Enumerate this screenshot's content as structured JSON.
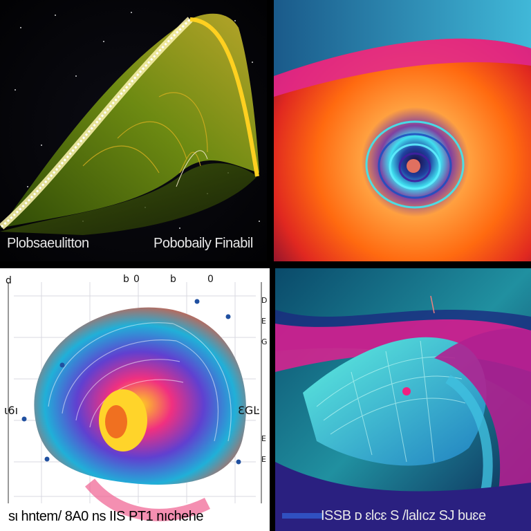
{
  "panels": [
    {
      "id": "top-left",
      "caption_left": "Plobsaeulitton",
      "caption_right": "Pobobaily Finabil"
    },
    {
      "id": "top-right"
    },
    {
      "id": "bottom-left",
      "caption": "sι hntem/ 8A0 ns IIS PT1 nıchehe",
      "axis_label_left": "ι6ı",
      "axis_label_right": "ƐGĿ",
      "top_ticks": [
        "d",
        "b",
        "0",
        "b",
        "0"
      ],
      "right_ticks": [
        "D",
        "E",
        "G",
        "E",
        "E"
      ]
    },
    {
      "id": "bottom-right",
      "caption": "ISSB ᴅ ɛlcɛ S /lalıcz SJ buɛe"
    }
  ],
  "colors": {
    "space": "#050508",
    "leaf_green": "#5c7a12",
    "leaf_yellow": "#e8d23a",
    "swirl_orange": "#ff7a10",
    "swirl_cyan": "#38d8e8",
    "shell_magenta": "#e8288a",
    "wave_teal": "#40d8c8"
  }
}
